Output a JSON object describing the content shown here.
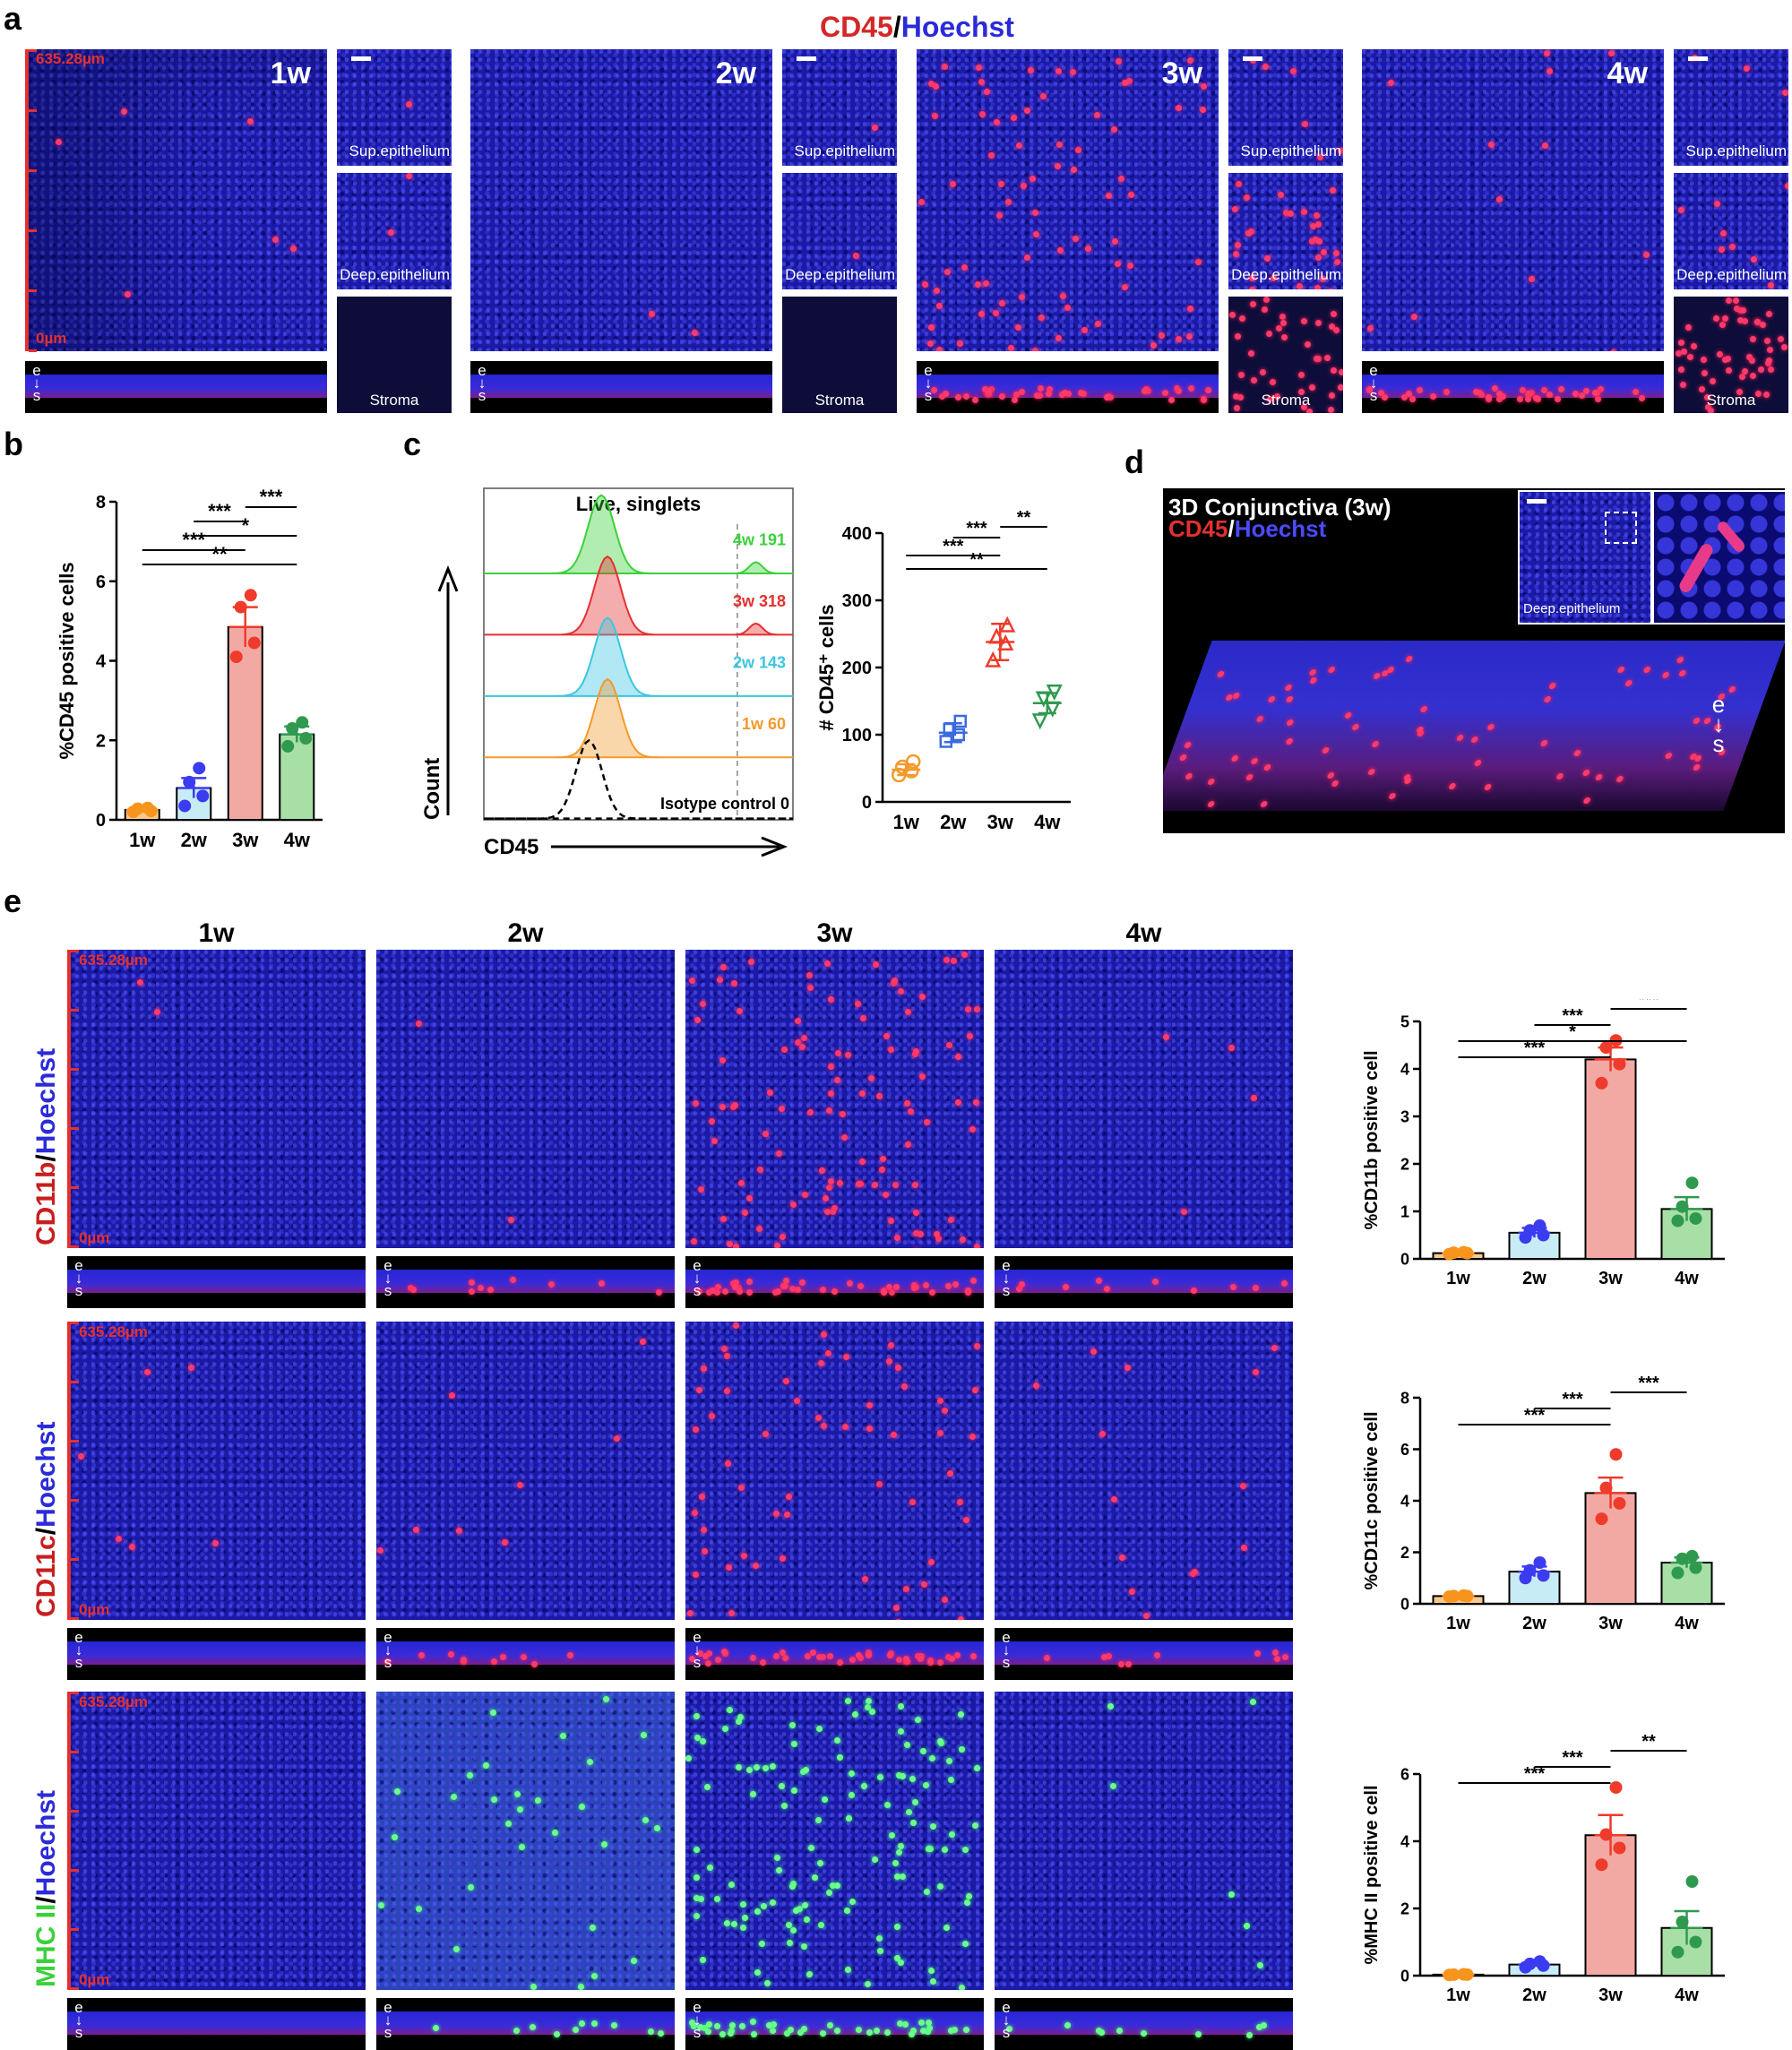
{
  "panel_labels": {
    "a": "a",
    "b": "b",
    "c": "c",
    "d": "d",
    "e": "e"
  },
  "panel_a": {
    "title_cd45": "CD45",
    "title_sep": "/",
    "title_hoechst": "Hoechst",
    "scale_top": "635.28µm",
    "scale_bottom": "0µm",
    "weeks": [
      "1w",
      "2w",
      "3w",
      "4w"
    ],
    "layers": [
      "Sup.epithelium",
      "Deep.epithelium",
      "Stroma"
    ],
    "es_e": "e",
    "es_s": "s"
  },
  "panel_d": {
    "title": "3D Conjunctiva (3w)",
    "label_cd45": "CD45",
    "label_sep": "/",
    "label_hoechst": "Hoechst",
    "inset_label": "Deep.epithelium",
    "es_e": "e",
    "es_s": "s"
  },
  "panel_e": {
    "weeks": [
      "1w",
      "2w",
      "3w",
      "4w"
    ],
    "row_labels": [
      {
        "marker": "CD11b",
        "sep": "/",
        "nuc": "Hoechst"
      },
      {
        "marker": "CD11c",
        "sep": "/",
        "nuc": "Hoechst"
      },
      {
        "marker": "MHC II",
        "sep": "/",
        "nuc": "Hoechst"
      }
    ],
    "scale_top": "635.28µm",
    "scale_bottom": "0µm",
    "es_e": "e",
    "es_s": "s"
  },
  "colors": {
    "red": "#e53030",
    "blue": "#2b2bd9",
    "green": "#3bd13b",
    "orange": "#f39a2b",
    "w1": "#f7941d",
    "w2": "#3b3bf0",
    "w3": "#ee3b2b",
    "w4": "#2f9a4f"
  },
  "chart_data": [
    {
      "id": "b",
      "type": "bar",
      "categories": [
        "1w",
        "2w",
        "3w",
        "4w"
      ],
      "values": [
        0.25,
        0.8,
        4.85,
        2.15
      ],
      "errors": [
        0.05,
        0.25,
        0.5,
        0.2
      ],
      "points": [
        [
          0.2,
          0.22,
          0.28,
          0.3
        ],
        [
          0.35,
          0.6,
          0.95,
          1.3
        ],
        [
          4.1,
          4.45,
          5.35,
          5.65
        ],
        [
          1.85,
          2.05,
          2.3,
          2.45
        ]
      ],
      "bar_colors": [
        "#f7c98f",
        "#c8ecf5",
        "#f3a9a3",
        "#a7dfa7"
      ],
      "point_colors": [
        "#f7941d",
        "#3b3bf0",
        "#ee3b2b",
        "#2f9a4f"
      ],
      "ylabel": "%CD45 positive cells",
      "ylim": [
        0,
        8
      ],
      "yticks": [
        0,
        2,
        4,
        6,
        8
      ],
      "sig": [
        {
          "from": 0,
          "to": 2,
          "label": "***"
        },
        {
          "from": 0,
          "to": 3,
          "label": "**"
        },
        {
          "from": 1,
          "to": 2,
          "label": "***"
        },
        {
          "from": 1,
          "to": 3,
          "label": "*"
        },
        {
          "from": 2,
          "to": 3,
          "label": "***"
        }
      ]
    },
    {
      "id": "c_hist",
      "type": "area",
      "title": "Live, singlets",
      "xlabel": "CD45",
      "ylabel": "Count",
      "series": [
        {
          "name": "4w 191",
          "color": "#3bd13b"
        },
        {
          "name": "3w 318",
          "color": "#e53030"
        },
        {
          "name": "2w 143",
          "color": "#3bc6e0"
        },
        {
          "name": "1w 60",
          "color": "#f39a2b"
        },
        {
          "name": "Isotype control 0",
          "color": "#000000"
        }
      ]
    },
    {
      "id": "c_scatter",
      "type": "scatter",
      "categories": [
        "1w",
        "2w",
        "3w",
        "4w"
      ],
      "means": [
        48,
        103,
        238,
        147
      ],
      "errors": [
        8,
        14,
        27,
        15
      ],
      "points": [
        [
          40,
          46,
          52,
          60
        ],
        [
          90,
          100,
          108,
          120
        ],
        [
          210,
          235,
          245,
          262
        ],
        [
          122,
          140,
          155,
          165
        ]
      ],
      "markers": [
        "circle",
        "square",
        "triangle-up",
        "triangle-down"
      ],
      "point_colors": [
        "#f39a2b",
        "#3b6be0",
        "#ee3b2b",
        "#2f9a4f"
      ],
      "ylabel": "# CD45⁺ cells",
      "ylim": [
        0,
        400
      ],
      "yticks": [
        0,
        100,
        200,
        300,
        400
      ],
      "sig": [
        {
          "from": 0,
          "to": 2,
          "label": "***"
        },
        {
          "from": 0,
          "to": 3,
          "label": "**"
        },
        {
          "from": 1,
          "to": 2,
          "label": "***"
        },
        {
          "from": 2,
          "to": 3,
          "label": "**"
        }
      ]
    },
    {
      "id": "e1",
      "type": "bar",
      "categories": [
        "1w",
        "2w",
        "3w",
        "4w"
      ],
      "values": [
        0.12,
        0.55,
        4.2,
        1.05
      ],
      "errors": [
        0.02,
        0.1,
        0.25,
        0.25
      ],
      "points": [
        [
          0.1,
          0.12,
          0.13,
          0.14
        ],
        [
          0.45,
          0.5,
          0.6,
          0.7
        ],
        [
          3.7,
          4.1,
          4.45,
          4.6
        ],
        [
          0.8,
          0.85,
          1.1,
          1.6
        ]
      ],
      "bar_colors": [
        "#f7c98f",
        "#c8ecf5",
        "#f3a9a3",
        "#a7dfa7"
      ],
      "point_colors": [
        "#f7941d",
        "#3b3bf0",
        "#ee3b2b",
        "#2f9a4f"
      ],
      "ylabel": "%CD11b positive cell",
      "ylim": [
        0,
        5
      ],
      "yticks": [
        0,
        1,
        2,
        3,
        4,
        5
      ],
      "sig": [
        {
          "from": 0,
          "to": 2,
          "label": "***"
        },
        {
          "from": 0,
          "to": 3,
          "label": "*"
        },
        {
          "from": 1,
          "to": 2,
          "label": "***"
        },
        {
          "from": 2,
          "to": 3,
          "label": "***"
        }
      ]
    },
    {
      "id": "e2",
      "type": "bar",
      "categories": [
        "1w",
        "2w",
        "3w",
        "4w"
      ],
      "values": [
        0.3,
        1.25,
        4.3,
        1.6
      ],
      "errors": [
        0.03,
        0.2,
        0.6,
        0.2
      ],
      "points": [
        [
          0.28,
          0.3,
          0.3,
          0.32
        ],
        [
          1.0,
          1.1,
          1.3,
          1.6
        ],
        [
          3.3,
          3.9,
          4.5,
          5.8
        ],
        [
          1.2,
          1.4,
          1.75,
          1.85
        ]
      ],
      "bar_colors": [
        "#f7c98f",
        "#c8ecf5",
        "#f3a9a3",
        "#a7dfa7"
      ],
      "point_colors": [
        "#f7941d",
        "#3b3bf0",
        "#ee3b2b",
        "#2f9a4f"
      ],
      "ylabel": "%CD11c positive cell",
      "ylim": [
        0,
        8
      ],
      "yticks": [
        0,
        2,
        4,
        6,
        8
      ],
      "sig": [
        {
          "from": 0,
          "to": 2,
          "label": "***"
        },
        {
          "from": 1,
          "to": 2,
          "label": "***"
        },
        {
          "from": 2,
          "to": 3,
          "label": "***"
        }
      ]
    },
    {
      "id": "e3",
      "type": "bar",
      "categories": [
        "1w",
        "2w",
        "3w",
        "4w"
      ],
      "values": [
        0.03,
        0.33,
        4.18,
        1.42
      ],
      "errors": [
        0.01,
        0.05,
        0.6,
        0.5
      ],
      "points": [
        [
          0.02,
          0.03,
          0.03,
          0.04
        ],
        [
          0.25,
          0.3,
          0.35,
          0.42
        ],
        [
          3.3,
          3.8,
          4.2,
          5.6
        ],
        [
          0.7,
          1.0,
          1.6,
          2.8
        ]
      ],
      "bar_colors": [
        "#f7c98f",
        "#c8ecf5",
        "#f3a9a3",
        "#a7dfa7"
      ],
      "point_colors": [
        "#f7941d",
        "#3b3bf0",
        "#ee3b2b",
        "#2f9a4f"
      ],
      "ylabel": "%MHC II positive cell",
      "ylim": [
        0,
        6
      ],
      "yticks": [
        0,
        2,
        4,
        6
      ],
      "sig": [
        {
          "from": 0,
          "to": 2,
          "label": "***"
        },
        {
          "from": 1,
          "to": 2,
          "label": "***"
        },
        {
          "from": 2,
          "to": 3,
          "label": "**"
        }
      ]
    }
  ]
}
